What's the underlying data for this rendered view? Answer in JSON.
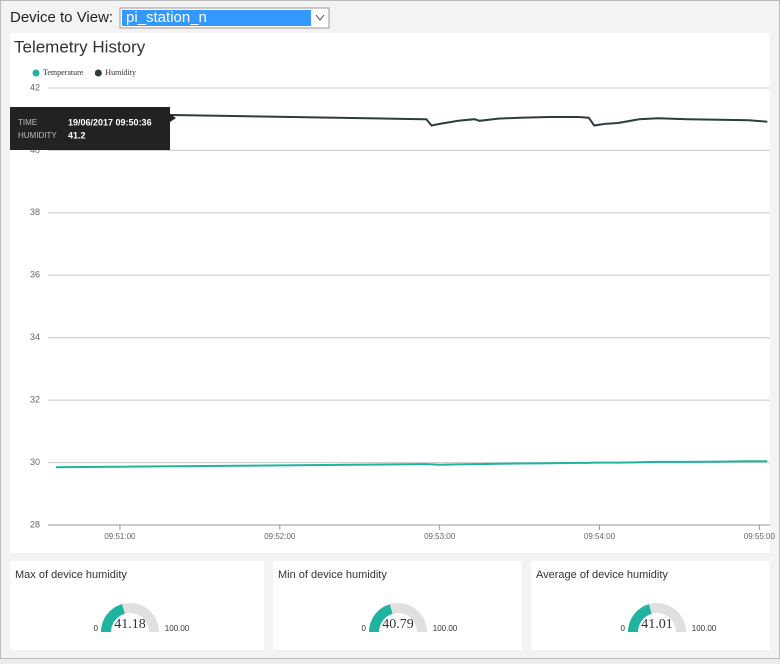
{
  "header": {
    "label": "Device to View:",
    "selected": "pi_station_n"
  },
  "chart_data": {
    "type": "line",
    "title": "Telemetry History",
    "x": [
      "09:50:36",
      "09:52:54",
      "09:52:55",
      "09:52:57",
      "09:53:00",
      "09:53:07",
      "09:53:13",
      "09:53:15",
      "09:53:22",
      "09:53:30",
      "09:53:41",
      "09:53:52",
      "09:53:56",
      "09:53:58",
      "09:54:02",
      "09:54:07",
      "09:54:15",
      "09:54:22",
      "09:54:33",
      "09:54:45",
      "09:54:56",
      "09:55:03"
    ],
    "series": [
      {
        "name": "Temperature",
        "color": "#1fb3a0",
        "values": [
          29.85,
          29.95,
          29.95,
          29.94,
          29.93,
          29.94,
          29.95,
          29.95,
          29.96,
          29.97,
          29.98,
          29.99,
          29.99,
          30.0,
          30.0,
          30.0,
          30.01,
          30.02,
          30.02,
          30.03,
          30.04,
          30.04
        ]
      },
      {
        "name": "Humidity",
        "color": "#2f3b3d",
        "values": [
          41.2,
          41.0,
          41.0,
          40.8,
          40.85,
          40.95,
          41.0,
          40.95,
          41.02,
          41.05,
          41.07,
          41.07,
          41.05,
          40.8,
          40.85,
          40.88,
          41.0,
          41.03,
          41.0,
          40.98,
          40.97,
          40.92
        ]
      }
    ],
    "xlim": [
      "09:50:33",
      "09:55:04"
    ],
    "xticks": [
      "09:51:00",
      "09:52:00",
      "09:53:00",
      "09:54:00",
      "09:55:00"
    ],
    "ylim": [
      28,
      42
    ],
    "yticks": [
      28,
      30,
      32,
      34,
      36,
      38,
      40,
      42
    ],
    "grid": true,
    "legend": "top-left",
    "tooltip": {
      "time_label": "TIME",
      "time": "19/06/2017 09:50:36",
      "value_label": "HUMIDITY",
      "value": 41.2
    }
  },
  "gauges": [
    {
      "title": "Max of device humidity",
      "value": 41.18,
      "min": 0,
      "max": {
        "value": 100,
        "label": "100.00"
      },
      "color": "#1fb3a0"
    },
    {
      "title": "Min of device humidity",
      "value": 40.79,
      "min": 0,
      "max": {
        "value": 100,
        "label": "100.00"
      },
      "color": "#1fb3a0"
    },
    {
      "title": "Average of device humidity",
      "value": 41.01,
      "min": 0,
      "max": {
        "value": 100,
        "label": "100.00"
      },
      "color": "#1fb3a0"
    }
  ]
}
